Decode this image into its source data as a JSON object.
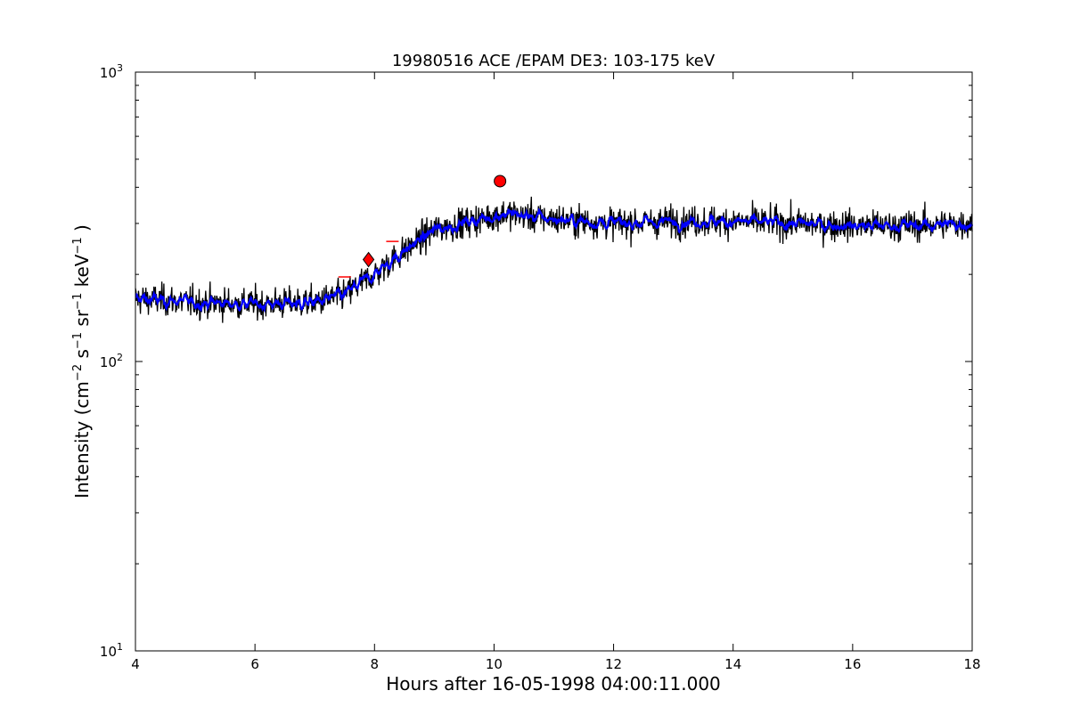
{
  "chart_data": {
    "type": "line",
    "title": "19980516 ACE /EPAM DE3: 103-175 keV",
    "xlabel": "Hours after 16-05-1998 04:00:11.000",
    "ylabel_parts": {
      "prefix": "Intensity (cm",
      "exp1": "−2",
      "s": " s",
      "exp2": "−1",
      "sr": " sr",
      "exp3": "−1",
      "kev": " keV",
      "exp4": "−1",
      "suffix": " )"
    },
    "xlim": [
      4,
      18
    ],
    "ylim": [
      10,
      1000
    ],
    "yscale": "log",
    "grid": false,
    "x_ticks": [
      4,
      6,
      8,
      10,
      12,
      14,
      16,
      18
    ],
    "y_ticks": [
      {
        "value": 10,
        "base": "10",
        "exp": "1"
      },
      {
        "value": 100,
        "base": "10",
        "exp": "2"
      },
      {
        "value": 1000,
        "base": "10",
        "exp": "3"
      }
    ],
    "series": [
      {
        "color": "#000000",
        "profile": [
          [
            4,
            165
          ],
          [
            5,
            160
          ],
          [
            6,
            158
          ],
          [
            7,
            160
          ],
          [
            7.5,
            170
          ],
          [
            8,
            200
          ],
          [
            8.5,
            240
          ],
          [
            9,
            285
          ],
          [
            9.6,
            305
          ],
          [
            10.2,
            325
          ],
          [
            11,
            310
          ],
          [
            12,
            300
          ],
          [
            13,
            305
          ],
          [
            14,
            305
          ],
          [
            15,
            300
          ],
          [
            16,
            295
          ],
          [
            17,
            295
          ],
          [
            18,
            300
          ]
        ]
      },
      {
        "color": "#0000ff",
        "profile": [
          [
            4,
            165
          ],
          [
            5,
            160
          ],
          [
            6,
            158
          ],
          [
            7,
            160
          ],
          [
            7.5,
            170
          ],
          [
            8,
            200
          ],
          [
            8.5,
            240
          ],
          [
            9,
            285
          ],
          [
            9.6,
            305
          ],
          [
            10.2,
            325
          ],
          [
            11,
            310
          ],
          [
            12,
            300
          ],
          [
            13,
            305
          ],
          [
            14,
            305
          ],
          [
            15,
            300
          ],
          [
            16,
            295
          ],
          [
            17,
            295
          ],
          [
            18,
            300
          ]
        ]
      }
    ],
    "markers": [
      {
        "shape": "circle",
        "x": 10.1,
        "y": 420,
        "color": "#ff0000"
      },
      {
        "shape": "diamond",
        "x": 7.9,
        "y": 225,
        "color": "#ff0000"
      },
      {
        "shape": "hline",
        "x": 7.5,
        "y": 196,
        "color": "#ff0000"
      },
      {
        "shape": "hline",
        "x": 8.3,
        "y": 260,
        "color": "#ff0000"
      }
    ]
  }
}
